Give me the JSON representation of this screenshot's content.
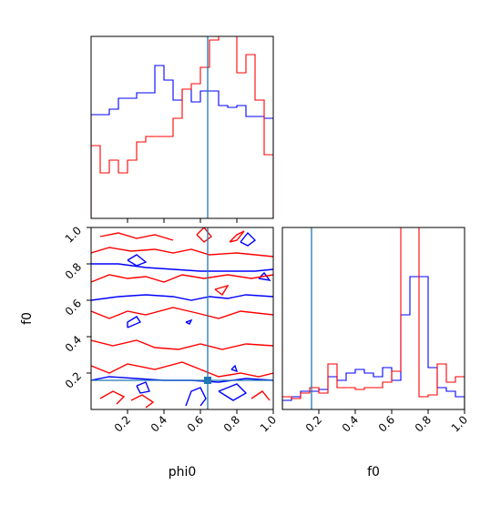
{
  "chart_data": [
    {
      "type": "histogram",
      "panel": "phi0-marginal",
      "xlim": [
        0,
        1
      ],
      "truth": 0.64,
      "series": [
        {
          "name": "",
          "color": "#0000ff",
          "edges": [
            0,
            0.1,
            0.15,
            0.25,
            0.35,
            0.4,
            0.45,
            0.5,
            0.55,
            0.6,
            0.7,
            0.75,
            0.8,
            0.85,
            0.95,
            1.0
          ],
          "heights": [
            0.57,
            0.6,
            0.66,
            0.69,
            0.84,
            0.76,
            0.65,
            0.71,
            0.64,
            0.7,
            0.62,
            0.61,
            0.62,
            0.56,
            0.55
          ]
        },
        {
          "name": "",
          "color": "#ff0000",
          "edges": [
            0,
            0.05,
            0.1,
            0.15,
            0.2,
            0.25,
            0.3,
            0.35,
            0.4,
            0.45,
            0.5,
            0.55,
            0.6,
            0.65,
            0.7,
            0.75,
            0.8,
            0.85,
            0.9,
            0.95,
            1.0
          ],
          "heights": [
            0.4,
            0.25,
            0.32,
            0.25,
            0.32,
            0.42,
            0.45,
            0.45,
            0.45,
            0.55,
            0.71,
            0.74,
            0.83,
            0.98,
            1.01,
            1.0,
            0.8,
            0.9,
            0.65,
            0.35
          ]
        }
      ]
    },
    {
      "type": "contour",
      "panel": "phi0-f0-joint",
      "xlabel": "phi0",
      "ylabel": "f0",
      "xlim": [
        0,
        1
      ],
      "ylim": [
        0,
        1
      ],
      "xticks": [
        "0.2",
        "0.4",
        "0.6",
        "0.8",
        "1.0"
      ],
      "yticks": [
        "0.2",
        "0.4",
        "0.6",
        "0.8",
        "1.0"
      ],
      "truth": [
        0.64,
        0.16
      ],
      "series": [
        {
          "name": "",
          "color": "#0000ff",
          "contours": [
            [
              [
                0,
                0.6
              ],
              [
                0.15,
                0.62
              ],
              [
                0.3,
                0.63
              ],
              [
                0.45,
                0.62
              ],
              [
                0.55,
                0.6
              ],
              [
                0.65,
                0.62
              ],
              [
                0.75,
                0.61
              ],
              [
                0.85,
                0.63
              ],
              [
                1.0,
                0.62
              ]
            ],
            [
              [
                0,
                0.8
              ],
              [
                0.15,
                0.8
              ],
              [
                0.3,
                0.78
              ],
              [
                0.45,
                0.77
              ],
              [
                0.6,
                0.76
              ],
              [
                0.75,
                0.76
              ],
              [
                0.9,
                0.76
              ],
              [
                1.0,
                0.77
              ]
            ],
            [
              [
                0,
                0.16
              ],
              [
                0.1,
                0.18
              ],
              [
                0.25,
                0.17
              ],
              [
                0.4,
                0.16
              ],
              [
                0.55,
                0.16
              ],
              [
                0.7,
                0.15
              ],
              [
                0.85,
                0.17
              ],
              [
                1.0,
                0.16
              ]
            ],
            [
              [
                0.2,
                0.45
              ],
              [
                0.27,
                0.48
              ],
              [
                0.25,
                0.51
              ],
              [
                0.2,
                0.48
              ],
              [
                0.2,
                0.45
              ]
            ],
            [
              [
                0.2,
                0.82
              ],
              [
                0.25,
                0.85
              ],
              [
                0.3,
                0.81
              ],
              [
                0.25,
                0.79
              ],
              [
                0.2,
                0.82
              ]
            ],
            [
              [
                0.25,
                0.13
              ],
              [
                0.3,
                0.15
              ],
              [
                0.32,
                0.1
              ],
              [
                0.27,
                0.09
              ],
              [
                0.25,
                0.13
              ]
            ],
            [
              [
                0.52,
                0.02
              ],
              [
                0.55,
                0.1
              ],
              [
                0.6,
                0.12
              ],
              [
                0.63,
                0.06
              ],
              [
                0.6,
                0.02
              ]
            ],
            [
              [
                0.7,
                0.1
              ],
              [
                0.8,
                0.14
              ],
              [
                0.85,
                0.09
              ],
              [
                0.78,
                0.05
              ],
              [
                0.7,
                0.1
              ]
            ],
            [
              [
                0.82,
                0.92
              ],
              [
                0.86,
                0.97
              ],
              [
                0.9,
                0.93
              ],
              [
                0.86,
                0.9
              ],
              [
                0.82,
                0.92
              ]
            ],
            [
              [
                0.92,
                0.72
              ],
              [
                0.95,
                0.75
              ],
              [
                0.98,
                0.71
              ],
              [
                0.92,
                0.72
              ]
            ],
            [
              [
                0.52,
                0.48
              ],
              [
                0.55,
                0.49
              ],
              [
                0.54,
                0.47
              ],
              [
                0.52,
                0.48
              ]
            ],
            [
              [
                0.77,
                0.22
              ],
              [
                0.79,
                0.24
              ],
              [
                0.8,
                0.21
              ],
              [
                0.77,
                0.22
              ]
            ]
          ]
        },
        {
          "name": "",
          "color": "#ff0000",
          "contours": [
            [
              [
                0,
                0.86
              ],
              [
                0.1,
                0.89
              ],
              [
                0.22,
                0.87
              ],
              [
                0.35,
                0.88
              ],
              [
                0.45,
                0.86
              ],
              [
                0.55,
                0.88
              ],
              [
                0.65,
                0.85
              ],
              [
                0.8,
                0.86
              ],
              [
                1.0,
                0.84
              ]
            ],
            [
              [
                0,
                0.7
              ],
              [
                0.1,
                0.74
              ],
              [
                0.2,
                0.72
              ],
              [
                0.3,
                0.73
              ],
              [
                0.4,
                0.7
              ],
              [
                0.5,
                0.74
              ],
              [
                0.62,
                0.72
              ],
              [
                0.75,
                0.74
              ],
              [
                0.88,
                0.72
              ],
              [
                1.0,
                0.74
              ]
            ],
            [
              [
                0,
                0.54
              ],
              [
                0.1,
                0.5
              ],
              [
                0.2,
                0.54
              ],
              [
                0.3,
                0.52
              ],
              [
                0.45,
                0.56
              ],
              [
                0.58,
                0.53
              ],
              [
                0.7,
                0.5
              ],
              [
                0.82,
                0.54
              ],
              [
                1.0,
                0.52
              ]
            ],
            [
              [
                0,
                0.38
              ],
              [
                0.12,
                0.35
              ],
              [
                0.25,
                0.38
              ],
              [
                0.35,
                0.34
              ],
              [
                0.48,
                0.33
              ],
              [
                0.6,
                0.36
              ],
              [
                0.72,
                0.33
              ],
              [
                0.85,
                0.36
              ],
              [
                1.0,
                0.35
              ]
            ],
            [
              [
                0,
                0.24
              ],
              [
                0.1,
                0.2
              ],
              [
                0.2,
                0.25
              ],
              [
                0.35,
                0.22
              ],
              [
                0.5,
                0.26
              ],
              [
                0.6,
                0.22
              ],
              [
                0.7,
                0.18
              ],
              [
                0.82,
                0.2
              ],
              [
                0.92,
                0.18
              ],
              [
                1.0,
                0.2
              ]
            ],
            [
              [
                0.05,
                0.95
              ],
              [
                0.15,
                0.97
              ],
              [
                0.25,
                0.94
              ],
              [
                0.35,
                0.96
              ],
              [
                0.45,
                0.93
              ]
            ],
            [
              [
                0.58,
                0.96
              ],
              [
                0.62,
                1.0
              ],
              [
                0.66,
                0.95
              ],
              [
                0.62,
                0.92
              ],
              [
                0.58,
                0.96
              ]
            ],
            [
              [
                0.76,
                0.92
              ],
              [
                0.8,
                0.96
              ],
              [
                0.84,
                0.98
              ],
              [
                0.8,
                0.93
              ],
              [
                0.76,
                0.92
              ]
            ],
            [
              [
                0.22,
                0.05
              ],
              [
                0.28,
                0.08
              ],
              [
                0.34,
                0.04
              ],
              [
                0.3,
                0.01
              ]
            ],
            [
              [
                0.05,
                0.06
              ],
              [
                0.12,
                0.1
              ],
              [
                0.18,
                0.07
              ],
              [
                0.14,
                0.03
              ]
            ],
            [
              [
                0.88,
                0.06
              ],
              [
                0.94,
                0.1
              ],
              [
                0.98,
                0.05
              ]
            ],
            [
              [
                0.68,
                0.66
              ],
              [
                0.75,
                0.68
              ],
              [
                0.72,
                0.63
              ],
              [
                0.68,
                0.66
              ]
            ]
          ]
        }
      ]
    },
    {
      "type": "histogram",
      "panel": "f0-marginal",
      "xlabel": "f0",
      "xlim": [
        0,
        1
      ],
      "xticks": [
        "0.2",
        "0.4",
        "0.6",
        "0.8",
        "1.0"
      ],
      "truth": 0.16,
      "series": [
        {
          "name": "",
          "color": "#0000ff",
          "edges": [
            0,
            0.05,
            0.1,
            0.15,
            0.2,
            0.25,
            0.3,
            0.35,
            0.4,
            0.45,
            0.5,
            0.55,
            0.6,
            0.65,
            0.7,
            0.75,
            0.8,
            0.85,
            0.9,
            0.95,
            1.0
          ],
          "heights": [
            0.05,
            0.07,
            0.1,
            0.1,
            0.11,
            0.18,
            0.16,
            0.2,
            0.22,
            0.2,
            0.18,
            0.23,
            0.16,
            0.52,
            0.73,
            0.73,
            0.23,
            0.12,
            0.1,
            0.07
          ]
        },
        {
          "name": "",
          "color": "#ff0000",
          "edges": [
            0,
            0.05,
            0.1,
            0.15,
            0.2,
            0.25,
            0.3,
            0.35,
            0.4,
            0.45,
            0.5,
            0.55,
            0.6,
            0.65,
            0.7,
            0.75,
            0.8,
            0.85,
            0.9,
            0.95,
            1.0
          ],
          "heights": [
            0.07,
            0.06,
            0.09,
            0.12,
            0.09,
            0.25,
            0.12,
            0.12,
            0.11,
            0.12,
            0.12,
            0.15,
            0.21,
            1.0,
            1.0,
            0.07,
            0.08,
            0.25,
            0.15,
            0.18
          ]
        }
      ]
    }
  ]
}
